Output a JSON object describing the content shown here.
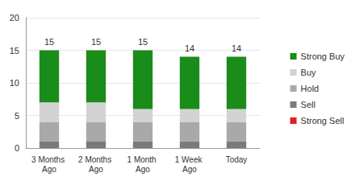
{
  "chart_data": {
    "type": "bar",
    "stacked": true,
    "categories": [
      "3 Months Ago",
      "2 Months Ago",
      "1 Month Ago",
      "1 Week Ago",
      "Today"
    ],
    "series": [
      {
        "name": "Strong Buy",
        "color": "#1a8c1a",
        "values": [
          8,
          8,
          9,
          8,
          8
        ]
      },
      {
        "name": "Buy",
        "color": "#d3d3d3",
        "values": [
          3,
          3,
          2,
          2,
          2
        ]
      },
      {
        "name": "Hold",
        "color": "#a9a9a9",
        "values": [
          3,
          3,
          3,
          3,
          3
        ]
      },
      {
        "name": "Sell",
        "color": "#7a7a7a",
        "values": [
          1,
          1,
          1,
          1,
          1
        ]
      },
      {
        "name": "Strong Sell",
        "color": "#e31b23",
        "values": [
          0,
          0,
          0,
          0,
          0
        ]
      }
    ],
    "totals": [
      15,
      15,
      15,
      14,
      14
    ],
    "ylim": [
      0,
      20
    ],
    "yticks": [
      0,
      5,
      10,
      15,
      20
    ],
    "grid": true,
    "legend": "right"
  }
}
